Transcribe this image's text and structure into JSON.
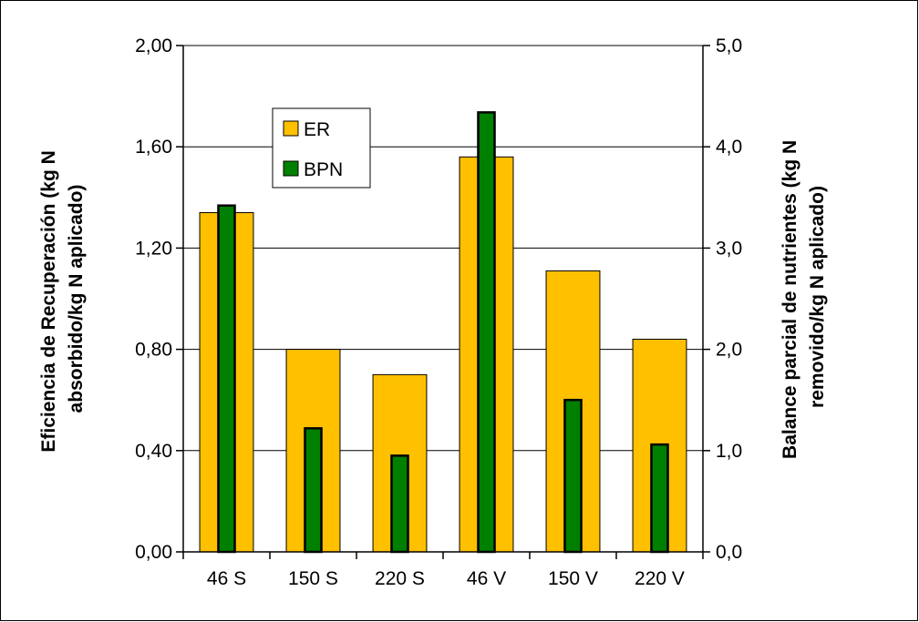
{
  "chart_data": {
    "type": "bar",
    "categories": [
      "46 S",
      "150 S",
      "220 S",
      "46 V",
      "150 V",
      "220 V"
    ],
    "series": [
      {
        "name": "ER",
        "axis": "left",
        "color": "#FFC000",
        "values": [
          1.34,
          0.8,
          0.7,
          1.56,
          1.11,
          0.84
        ]
      },
      {
        "name": "BPN",
        "axis": "right",
        "color": "#008000",
        "values": [
          3.42,
          1.22,
          0.95,
          4.34,
          1.5,
          1.06
        ]
      }
    ],
    "y_left": {
      "label_line1": "Eficiencia de Recuperación (kg N",
      "label_line2": "absorbido/kg N aplicado)",
      "range": [
        0,
        2.0
      ],
      "ticks": [
        "0,00",
        "0,40",
        "0,80",
        "1,20",
        "1,60",
        "2,00"
      ]
    },
    "y_right": {
      "label_line1": "Balance parcial de nutrientes (kg N",
      "label_line2": "removido/kg N aplicado)",
      "range": [
        0,
        5.0
      ],
      "ticks": [
        "0,0",
        "1,0",
        "2,0",
        "3,0",
        "4,0",
        "5,0"
      ]
    },
    "grid": true,
    "legend_position": "top-left"
  }
}
